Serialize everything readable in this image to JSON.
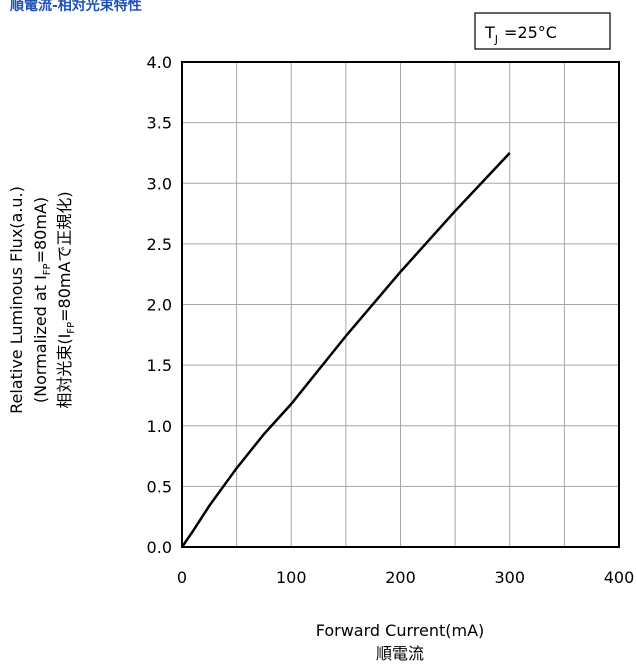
{
  "title": "順電流-相対光束特性",
  "condition": {
    "symbol": "T",
    "subscript": "J",
    "value": "=25°C"
  },
  "chart_data": {
    "type": "line",
    "xlabel": "Forward Current(mA)",
    "xlabel_ja": "順電流",
    "ylabel_lines": [
      {
        "text": "Relative Luminous Flux(a.u.)"
      },
      {
        "pre": "(Normalized at I",
        "sub": "FP",
        "post": "=80mA)"
      },
      {
        "pre": "相対光束(I",
        "sub": "FP",
        "post": "=80mAで正規化)"
      }
    ],
    "xlim": [
      0,
      400
    ],
    "ylim": [
      0.0,
      4.0
    ],
    "x_ticks": [
      "0",
      "100",
      "200",
      "300",
      "400"
    ],
    "y_ticks": [
      "0.0",
      "0.5",
      "1.0",
      "1.5",
      "2.0",
      "2.5",
      "3.0",
      "3.5",
      "4.0"
    ],
    "x_tick_values": [
      0,
      100,
      200,
      300,
      400
    ],
    "y_tick_values": [
      0.0,
      0.5,
      1.0,
      1.5,
      2.0,
      2.5,
      3.0,
      3.5,
      4.0
    ],
    "grid": true,
    "series": [
      {
        "color": "#000000",
        "x": [
          0,
          10,
          25,
          50,
          75,
          100,
          150,
          200,
          250,
          300
        ],
        "y": [
          0.0,
          0.13,
          0.34,
          0.65,
          0.93,
          1.18,
          1.74,
          2.27,
          2.77,
          3.25
        ]
      }
    ]
  }
}
